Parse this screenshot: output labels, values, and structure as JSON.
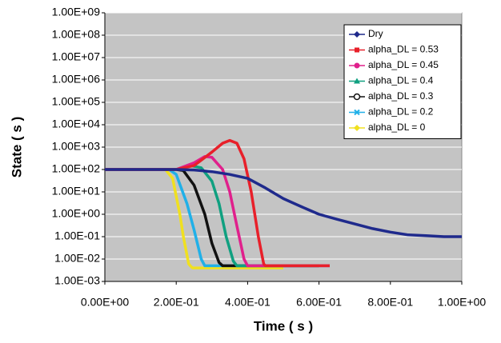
{
  "chart_data": {
    "type": "line",
    "log_y": true,
    "grid": true,
    "legend": "top-right",
    "xlabel": "Time ( s )",
    "ylabel": "State ( s )",
    "xlim": [
      0,
      1
    ],
    "ylim": [
      0.001,
      1000000000
    ],
    "xticks": [
      {
        "value": 0,
        "label": "0.00E+00"
      },
      {
        "value": 0.2,
        "label": "2.00E-01"
      },
      {
        "value": 0.4,
        "label": "4.00E-01"
      },
      {
        "value": 0.6,
        "label": "6.00E-01"
      },
      {
        "value": 0.8,
        "label": "8.00E-01"
      },
      {
        "value": 1,
        "label": "1.00E+00"
      }
    ],
    "yticks": [
      {
        "value": 0.001,
        "label": "1.00E-03"
      },
      {
        "value": 0.01,
        "label": "1.00E-02"
      },
      {
        "value": 0.1,
        "label": "1.00E-01"
      },
      {
        "value": 1,
        "label": "1.00E+00"
      },
      {
        "value": 10,
        "label": "1.00E+01"
      },
      {
        "value": 100,
        "label": "1.00E+02"
      },
      {
        "value": 1000,
        "label": "1.00E+03"
      },
      {
        "value": 10000,
        "label": "1.00E+04"
      },
      {
        "value": 100000,
        "label": "1.00E+05"
      },
      {
        "value": 1000000,
        "label": "1.00E+06"
      },
      {
        "value": 10000000,
        "label": "1.00E+07"
      },
      {
        "value": 100000000,
        "label": "1.00E+08"
      },
      {
        "value": 1000000000,
        "label": "1.00E+09"
      }
    ],
    "series": [
      {
        "name": "Dry",
        "color": "#1f2a8c",
        "marker": "diamond",
        "x": [
          0,
          0.1,
          0.2,
          0.25,
          0.3,
          0.35,
          0.4,
          0.45,
          0.5,
          0.55,
          0.6,
          0.65,
          0.7,
          0.75,
          0.8,
          0.85,
          0.9,
          0.95,
          1
        ],
        "values": [
          100,
          100,
          100,
          95,
          80,
          60,
          40,
          15,
          5,
          2.2,
          1,
          0.6,
          0.37,
          0.23,
          0.16,
          0.12,
          0.11,
          0.1,
          0.1
        ]
      },
      {
        "name": "alpha_DL = 0.53",
        "color": "#e8202a",
        "marker": "square",
        "x": [
          0,
          0.2,
          0.25,
          0.3,
          0.33,
          0.35,
          0.37,
          0.39,
          0.41,
          0.43,
          0.445,
          0.45,
          0.63
        ],
        "values": [
          100,
          100,
          150,
          600,
          1500,
          2000,
          1500,
          300,
          10,
          0.1,
          0.006,
          0.005,
          0.005
        ]
      },
      {
        "name": "alpha_DL = 0.45",
        "color": "#e0208c",
        "marker": "circle",
        "x": [
          0,
          0.2,
          0.25,
          0.28,
          0.3,
          0.33,
          0.35,
          0.37,
          0.39,
          0.4,
          0.63
        ],
        "values": [
          100,
          100,
          200,
          380,
          350,
          100,
          10,
          0.3,
          0.01,
          0.005,
          0.005
        ]
      },
      {
        "name": "alpha_DL = 0.4",
        "color": "#10a080",
        "marker": "triangle",
        "x": [
          0,
          0.2,
          0.24,
          0.27,
          0.3,
          0.32,
          0.34,
          0.36,
          0.37,
          0.6
        ],
        "values": [
          100,
          100,
          150,
          120,
          30,
          3,
          0.1,
          0.008,
          0.005,
          0.005
        ]
      },
      {
        "name": "alpha_DL = 0.3",
        "color": "#111111",
        "marker": "open-circle",
        "x": [
          0,
          0.2,
          0.22,
          0.25,
          0.28,
          0.3,
          0.32,
          0.33,
          0.6
        ],
        "values": [
          100,
          100,
          90,
          20,
          1,
          0.05,
          0.007,
          0.005,
          0.005
        ]
      },
      {
        "name": "alpha_DL = 0.2",
        "color": "#20b0e8",
        "marker": "cross",
        "x": [
          0,
          0.18,
          0.2,
          0.23,
          0.25,
          0.27,
          0.28,
          0.63
        ],
        "values": [
          100,
          100,
          60,
          3,
          0.2,
          0.01,
          0.005,
          0.005
        ]
      },
      {
        "name": "alpha_DL = 0",
        "color": "#f0e020",
        "marker": "diamond",
        "x": [
          0,
          0.17,
          0.19,
          0.21,
          0.22,
          0.235,
          0.245,
          0.5
        ],
        "values": [
          100,
          100,
          40,
          1,
          0.1,
          0.006,
          0.004,
          0.004
        ]
      }
    ]
  }
}
